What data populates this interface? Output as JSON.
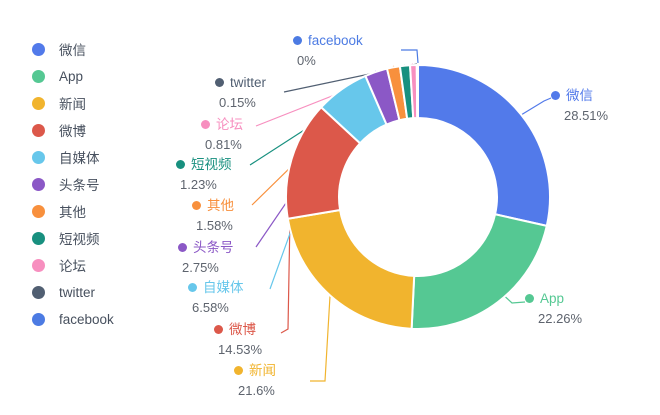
{
  "chart_data": {
    "type": "pie",
    "subtype": "donut",
    "title": "",
    "legend_position": "left",
    "inner_radius_ratio": 0.6,
    "start_angle": "top",
    "direction": "clockwise",
    "series": [
      {
        "name": "微信",
        "value": 28.51,
        "pct_label": "28.51%",
        "color": "#527AEA"
      },
      {
        "name": "App",
        "value": 22.26,
        "pct_label": "22.26%",
        "color": "#55C893"
      },
      {
        "name": "新闻",
        "value": 21.6,
        "pct_label": "21.6%",
        "color": "#F1B42E"
      },
      {
        "name": "微博",
        "value": 14.53,
        "pct_label": "14.53%",
        "color": "#DC584A"
      },
      {
        "name": "自媒体",
        "value": 6.58,
        "pct_label": "6.58%",
        "color": "#67C7EB"
      },
      {
        "name": "头条号",
        "value": 2.75,
        "pct_label": "2.75%",
        "color": "#8B58C6"
      },
      {
        "name": "其他",
        "value": 1.58,
        "pct_label": "1.58%",
        "color": "#F8903D"
      },
      {
        "name": "短视频",
        "value": 1.23,
        "pct_label": "1.23%",
        "color": "#18907F"
      },
      {
        "name": "论坛",
        "value": 0.81,
        "pct_label": "0.81%",
        "color": "#F78FBF"
      },
      {
        "name": "twitter",
        "value": 0.15,
        "pct_label": "0.15%",
        "color": "#515F72"
      },
      {
        "name": "facebook",
        "value": 0,
        "pct_label": "0%",
        "color": "#4C7BE3"
      }
    ]
  }
}
